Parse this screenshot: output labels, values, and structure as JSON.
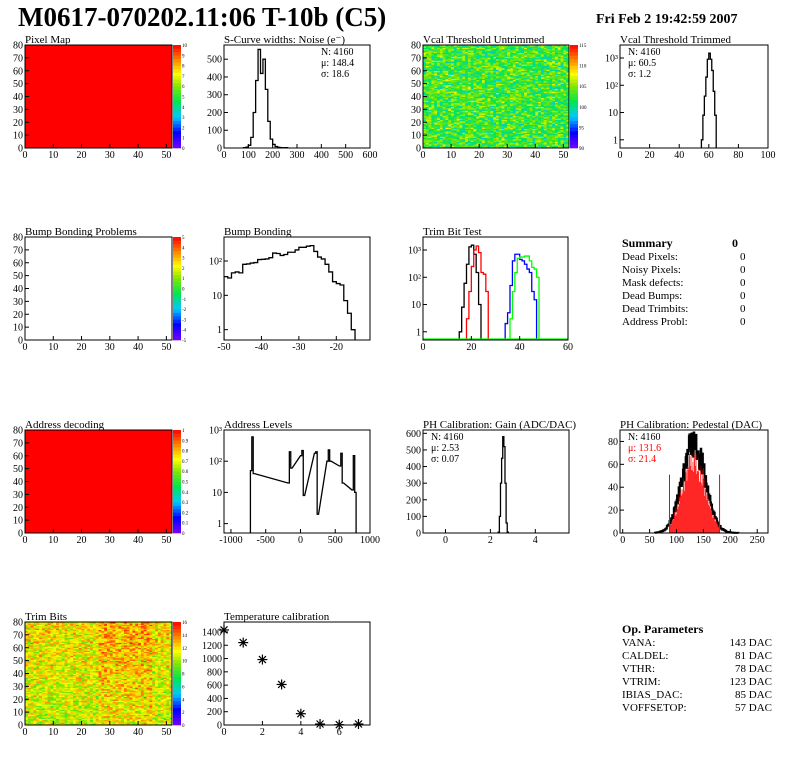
{
  "header": {
    "title": "M0617-070202.11:06 T-10b (C5)",
    "date": "Fri Feb  2 19:42:59 2007"
  },
  "colors": {
    "line": "#000000",
    "red": "#ff0000",
    "blue": "#0000ff",
    "green": "#00ff00",
    "map_uniform": "#ff0000"
  },
  "summary": {
    "title": "Summary",
    "total": "0",
    "rows": [
      {
        "label": "Dead Pixels:",
        "value": "0"
      },
      {
        "label": "Noisy Pixels:",
        "value": "0"
      },
      {
        "label": "Mask defects:",
        "value": "0"
      },
      {
        "label": "Dead Bumps:",
        "value": "0"
      },
      {
        "label": "Dead Trimbits:",
        "value": "0"
      },
      {
        "label": "Address Probl:",
        "value": "0"
      }
    ]
  },
  "op_params": {
    "title": "Op. Parameters",
    "rows": [
      {
        "label": "VANA:",
        "value": "143 DAC"
      },
      {
        "label": "CALDEL:",
        "value": "81 DAC"
      },
      {
        "label": "VTHR:",
        "value": "78 DAC"
      },
      {
        "label": "VTRIM:",
        "value": "123 DAC"
      },
      {
        "label": "IBIAS_DAC:",
        "value": "85 DAC"
      },
      {
        "label": "VOFFSETOP:",
        "value": "57 DAC"
      }
    ]
  },
  "chart_data": [
    {
      "id": "pixel-map",
      "type": "heatmap",
      "title": "Pixel Map",
      "xlim": [
        0,
        52
      ],
      "ylim": [
        0,
        80
      ],
      "xticks": [
        "0",
        "10",
        "20",
        "30",
        "40",
        "50"
      ],
      "yticks": [
        "0",
        "10",
        "20",
        "30",
        "40",
        "50",
        "60",
        "70",
        "80"
      ],
      "zlim": [
        0,
        10
      ],
      "zticks": [
        "0",
        "1",
        "2",
        "3",
        "4",
        "5",
        "6",
        "7",
        "8",
        "9",
        "10"
      ],
      "pattern": "uniform",
      "value": 10
    },
    {
      "id": "scurve-noise",
      "type": "bar",
      "title": "S-Curve widths: Noise (e⁻)",
      "xlim": [
        0,
        600
      ],
      "ylim": [
        0,
        580
      ],
      "xticks": [
        "0",
        "100",
        "200",
        "300",
        "400",
        "500",
        "600"
      ],
      "yticks": [
        "0",
        "100",
        "200",
        "300",
        "400",
        "500"
      ],
      "stats": [
        {
          "t": "N: 4160"
        },
        {
          "t": "μ: 148.4"
        },
        {
          "t": "σ: 18.6"
        }
      ],
      "binwidth": 10,
      "series": [
        {
          "x": [
            80,
            90,
            100,
            110,
            120,
            130,
            140,
            150,
            160,
            170,
            180,
            190,
            200,
            210,
            220,
            230,
            240,
            250,
            260
          ],
          "y": [
            2,
            5,
            15,
            60,
            200,
            380,
            555,
            420,
            500,
            330,
            150,
            50,
            20,
            8,
            4,
            2,
            1,
            2,
            0
          ]
        }
      ]
    },
    {
      "id": "vcal-untrimmed",
      "type": "heatmap",
      "title": "Vcal Threshold Untrimmed",
      "xlim": [
        0,
        52
      ],
      "ylim": [
        0,
        80
      ],
      "xticks": [
        "0",
        "10",
        "20",
        "30",
        "40",
        "50"
      ],
      "yticks": [
        "0",
        "10",
        "20",
        "30",
        "40",
        "50",
        "60",
        "70",
        "80"
      ],
      "zlim": [
        88,
        117
      ],
      "zticks": [
        "90",
        "95",
        "100",
        "105",
        "110",
        "115"
      ],
      "pattern": "noise",
      "mean": 103,
      "spread": 6
    },
    {
      "id": "vcal-trimmed",
      "type": "bar",
      "log": true,
      "title": "Vcal Threshold Trimmed",
      "xlim": [
        0,
        100
      ],
      "ylim": [
        0.5,
        3000
      ],
      "xticks": [
        "0",
        "20",
        "40",
        "60",
        "80",
        "100"
      ],
      "yticks": [
        "1",
        "10",
        "10²",
        "10³"
      ],
      "stats": [
        {
          "t": "N: 4160"
        },
        {
          "t": "μ: 60.5"
        },
        {
          "t": "σ:  1.2"
        }
      ],
      "binwidth": 1,
      "series": [
        {
          "x": [
            55,
            56,
            57,
            58,
            59,
            60,
            61,
            62,
            63,
            64
          ],
          "y": [
            1,
            8,
            40,
            200,
            900,
            1500,
            900,
            350,
            60,
            8
          ]
        }
      ]
    },
    {
      "id": "bump-bonding-problems",
      "type": "heatmap",
      "title": "Bump Bonding Problems",
      "xlim": [
        0,
        52
      ],
      "ylim": [
        0,
        80
      ],
      "xticks": [
        "0",
        "10",
        "20",
        "30",
        "40",
        "50"
      ],
      "yticks": [
        "0",
        "10",
        "20",
        "30",
        "40",
        "50",
        "60",
        "70",
        "80"
      ],
      "zlim": [
        -5,
        5
      ],
      "zticks": [
        "-5",
        "-4",
        "-3",
        "-2",
        "-1",
        "0",
        "1",
        "2",
        "3",
        "4",
        "5"
      ],
      "pattern": "empty"
    },
    {
      "id": "bump-bonding",
      "type": "bar",
      "log": true,
      "title": "Bump Bonding",
      "xlim": [
        -50,
        -11
      ],
      "ylim": [
        0.5,
        500
      ],
      "xticks": [
        "-50",
        "-40",
        "-30",
        "-20"
      ],
      "yticks": [
        "1",
        "10",
        "10²"
      ],
      "binwidth": 1,
      "series": [
        {
          "x": [
            -50,
            -49,
            -48,
            -47,
            -46,
            -45,
            -44,
            -43,
            -42,
            -41,
            -40,
            -39,
            -38,
            -37,
            -36,
            -35,
            -34,
            -33,
            -32,
            -31,
            -30,
            -29,
            -28,
            -27,
            -26,
            -25,
            -24,
            -23,
            -22,
            -21,
            -20,
            -19,
            -18,
            -17,
            -16
          ],
          "y": [
            35,
            32,
            45,
            48,
            45,
            80,
            82,
            87,
            90,
            110,
            112,
            115,
            125,
            170,
            165,
            145,
            155,
            180,
            180,
            210,
            250,
            250,
            270,
            280,
            190,
            130,
            115,
            80,
            48,
            25,
            22,
            20,
            7,
            3,
            1
          ]
        }
      ]
    },
    {
      "id": "trim-bit-test",
      "type": "bar",
      "log": true,
      "title": "Trim Bit Test",
      "xlim": [
        0,
        60
      ],
      "ylim": [
        0.5,
        3000
      ],
      "xticks": [
        "0",
        "20",
        "40",
        "60"
      ],
      "yticks": [
        "1",
        "10",
        "10²",
        "10³"
      ],
      "binwidth": 1,
      "series": [
        {
          "color": "#000000",
          "x": [
            15,
            16,
            17,
            18,
            19,
            20,
            21,
            22,
            23
          ],
          "y": [
            1,
            8,
            60,
            300,
            1300,
            1500,
            700,
            150,
            10
          ]
        },
        {
          "color": "#ff0000",
          "x": [
            18,
            19,
            20,
            21,
            22,
            23,
            24,
            25,
            26
          ],
          "y": [
            3,
            30,
            250,
            1000,
            1400,
            800,
            150,
            130,
            30
          ]
        },
        {
          "color": "#0000ff",
          "x": [
            34,
            35,
            36,
            37,
            38,
            39,
            40,
            41,
            42,
            43,
            44,
            45,
            46
          ],
          "y": [
            2,
            5,
            50,
            400,
            700,
            700,
            450,
            400,
            300,
            200,
            150,
            30,
            15
          ]
        },
        {
          "color": "#00ff00",
          "x": [
            36,
            37,
            38,
            39,
            40,
            41,
            42,
            43,
            44,
            45,
            46,
            47
          ],
          "y": [
            3,
            30,
            150,
            500,
            550,
            550,
            600,
            600,
            400,
            230,
            200,
            100
          ]
        }
      ]
    },
    {
      "id": "address-decoding",
      "type": "heatmap",
      "title": "Address decoding",
      "xlim": [
        0,
        52
      ],
      "ylim": [
        0,
        80
      ],
      "xticks": [
        "0",
        "10",
        "20",
        "30",
        "40",
        "50"
      ],
      "yticks": [
        "0",
        "10",
        "20",
        "30",
        "40",
        "50",
        "60",
        "70",
        "80"
      ],
      "zlim": [
        0,
        1
      ],
      "zticks": [
        "0",
        "0.1",
        "0.2",
        "0.3",
        "0.4",
        "0.5",
        "0.6",
        "0.7",
        "0.8",
        "0.9",
        "1"
      ],
      "pattern": "uniform",
      "value": 1
    },
    {
      "id": "address-levels",
      "type": "bar",
      "log": true,
      "title": "Address Levels",
      "xlim": [
        -1100,
        1000
      ],
      "ylim": [
        0.5,
        1000
      ],
      "xticks": [
        "-1000",
        "-500",
        "0",
        "500",
        "1000"
      ],
      "yticks": [
        "1",
        "10",
        "10²",
        "10³"
      ],
      "binwidth": 20,
      "series": [
        {
          "x": [
            -720,
            -700,
            -680,
            -180,
            -160,
            -140,
            0,
            20,
            40,
            200,
            220,
            240,
            380,
            400,
            420,
            560,
            580,
            600,
            740,
            760,
            780
          ],
          "y": [
            50,
            600,
            40,
            20,
            200,
            60,
            150,
            220,
            8,
            180,
            200,
            2,
            100,
            230,
            100,
            70,
            180,
            20,
            12,
            150,
            10
          ]
        }
      ]
    },
    {
      "id": "ph-gain",
      "type": "bar",
      "title": "PH Calibration: Gain (ADC/DAC)",
      "xlim": [
        -1,
        5.5
      ],
      "ylim": [
        0,
        620
      ],
      "xticks": [
        "0",
        "2",
        "4"
      ],
      "yticks": [
        "0",
        "100",
        "200",
        "300",
        "400",
        "500",
        "600"
      ],
      "stats": [
        {
          "t": "N: 4160"
        },
        {
          "t": "μ: 2.53"
        },
        {
          "t": "σ: 0.07"
        }
      ],
      "binwidth": 0.05,
      "series": [
        {
          "x": [
            2.35,
            2.4,
            2.45,
            2.5,
            2.55,
            2.6,
            2.65,
            2.7,
            2.75
          ],
          "y": [
            5,
            100,
            300,
            450,
            580,
            520,
            300,
            60,
            5
          ]
        }
      ]
    },
    {
      "id": "ph-pedestal",
      "type": "bar",
      "title": "PH Calibration: Pedestal (DAC)",
      "xlim": [
        -5,
        270
      ],
      "ylim": [
        0,
        90
      ],
      "xticks": [
        "0",
        "50",
        "100",
        "150",
        "200",
        "250"
      ],
      "yticks": [
        "0",
        "20",
        "40",
        "60",
        "80"
      ],
      "stats": [
        {
          "t": "N: 4160"
        },
        {
          "t": "μ: 131.6",
          "color": "#ff0000"
        },
        {
          "t": "σ: 21.4",
          "color": "#ff0000"
        }
      ],
      "fit_range": [
        87,
        180
      ],
      "mean": 131.6,
      "sigma": 21.4,
      "entries": 4160
    },
    {
      "id": "trim-bits",
      "type": "heatmap",
      "title": "Trim Bits",
      "xlim": [
        0,
        52
      ],
      "ylim": [
        0,
        80
      ],
      "xticks": [
        "0",
        "10",
        "20",
        "30",
        "40",
        "50"
      ],
      "yticks": [
        "0",
        "10",
        "20",
        "30",
        "40",
        "50",
        "60",
        "70",
        "80"
      ],
      "zlim": [
        0,
        16
      ],
      "zticks": [
        "0",
        "2",
        "4",
        "6",
        "8",
        "10",
        "12",
        "14",
        "16"
      ],
      "pattern": "noise",
      "mean": 10.5,
      "spread": 3
    },
    {
      "id": "temperature-calibration",
      "type": "scatter",
      "title": "Temperature calibration",
      "xlim": [
        0,
        7.6
      ],
      "ylim": [
        0,
        1550
      ],
      "xticks": [
        "0",
        "2",
        "4",
        "6"
      ],
      "yticks": [
        "0",
        "200",
        "400",
        "600",
        "800",
        "1000",
        "1200",
        "1400"
      ],
      "series": [
        {
          "x": [
            0,
            1,
            2,
            3,
            4,
            5,
            6,
            7
          ],
          "y": [
            1430,
            1240,
            985,
            610,
            170,
            15,
            5,
            15
          ]
        }
      ]
    }
  ]
}
